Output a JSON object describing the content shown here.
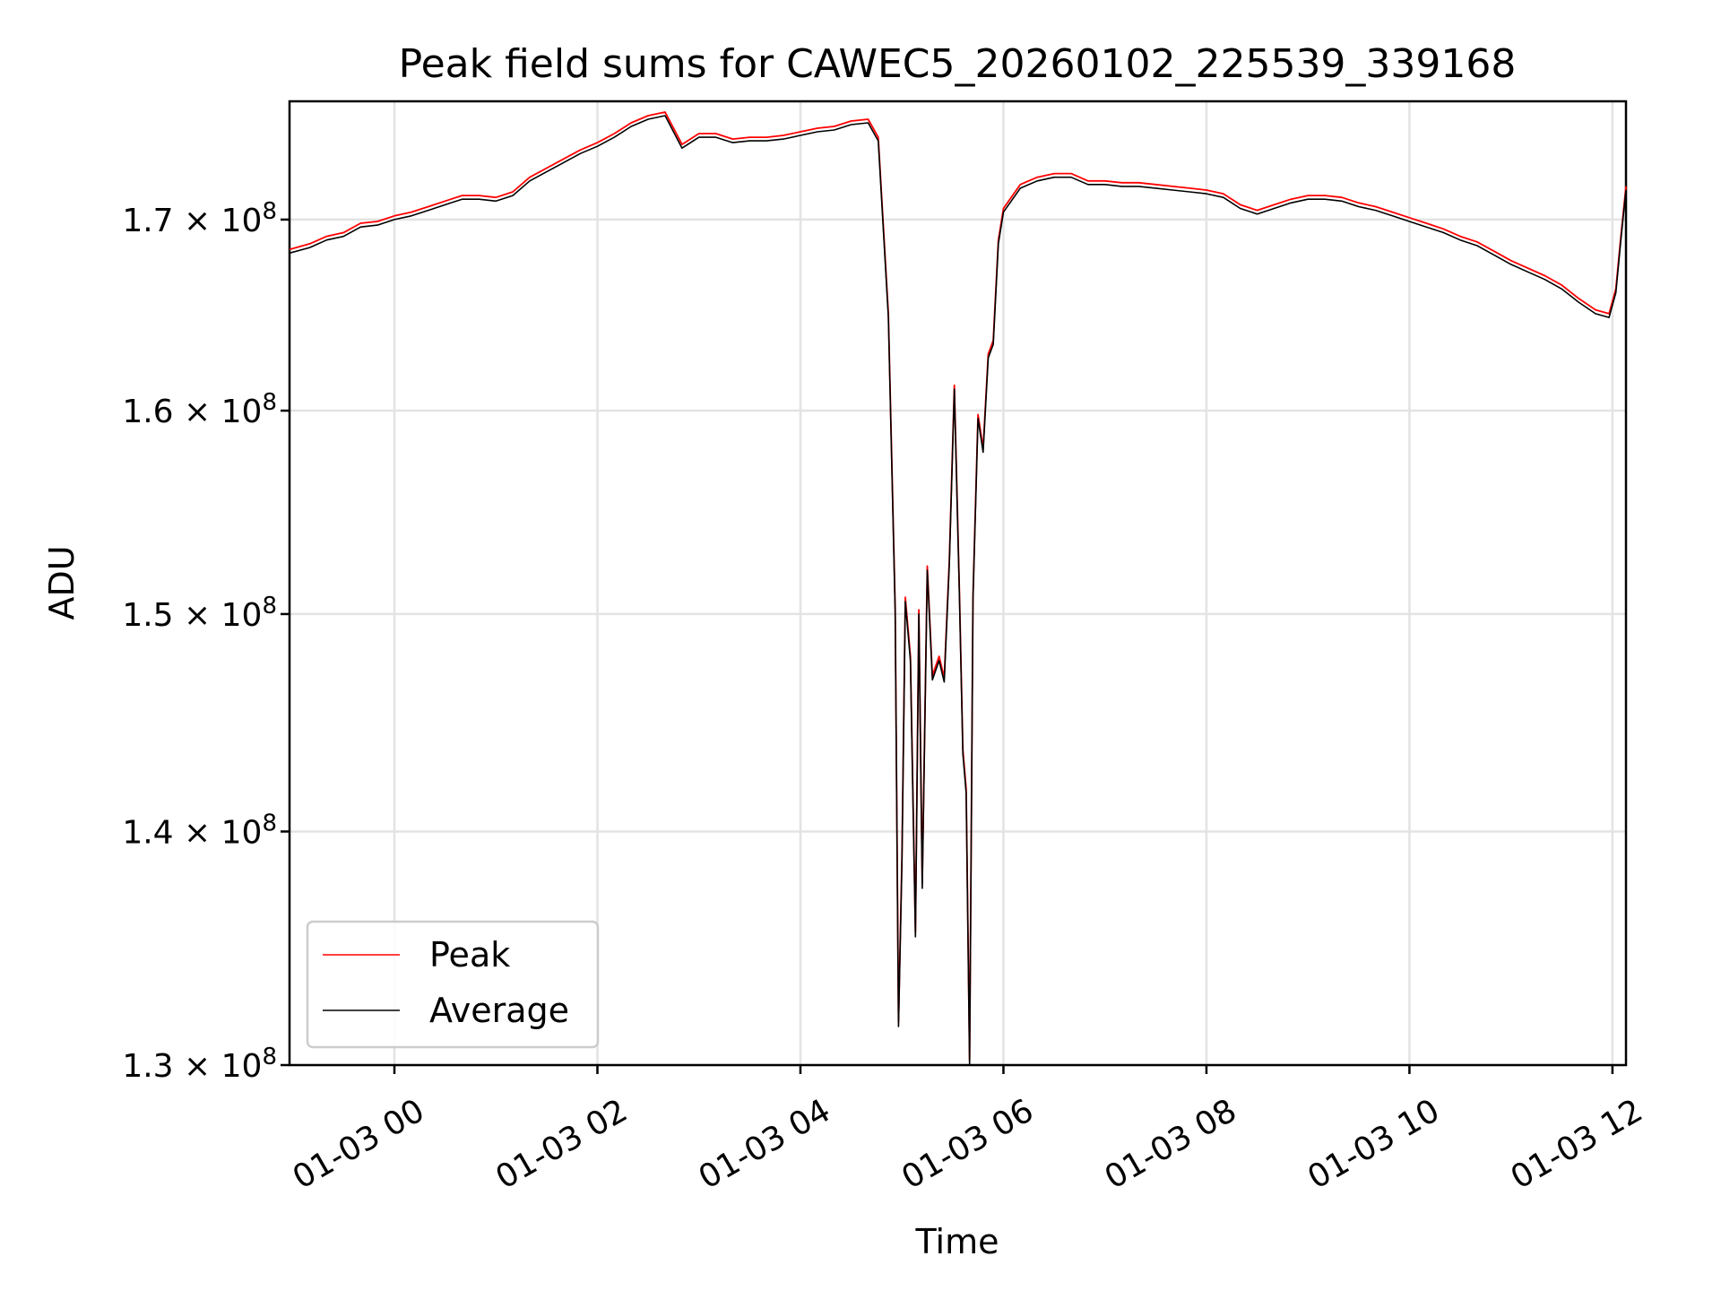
{
  "chart_data": {
    "type": "line",
    "title": "Peak field sums for CAWEC5_20260102_225539_339168",
    "xlabel": "Time",
    "ylabel": "ADU",
    "yscale": "log",
    "xlim": [
      "2026-01-02 22:58",
      "2026-01-03 12:08"
    ],
    "ylim": [
      130000000,
      176500000
    ],
    "x_ticks": [
      {
        "value": "2026-01-03 00:00",
        "label": "01-03 00"
      },
      {
        "value": "2026-01-03 02:00",
        "label": "01-03 02"
      },
      {
        "value": "2026-01-03 04:00",
        "label": "01-03 04"
      },
      {
        "value": "2026-01-03 06:00",
        "label": "01-03 06"
      },
      {
        "value": "2026-01-03 08:00",
        "label": "01-03 08"
      },
      {
        "value": "2026-01-03 10:00",
        "label": "01-03 10"
      },
      {
        "value": "2026-01-03 12:00",
        "label": "01-03 12"
      }
    ],
    "y_ticks": [
      {
        "value": 130000000,
        "mantissa": "1.3",
        "base": "10",
        "exp": "8"
      },
      {
        "value": 140000000,
        "mantissa": "1.4",
        "base": "10",
        "exp": "8"
      },
      {
        "value": 150000000,
        "mantissa": "1.5",
        "base": "10",
        "exp": "8"
      },
      {
        "value": 160000000,
        "mantissa": "1.6",
        "base": "10",
        "exp": "8"
      },
      {
        "value": 170000000,
        "mantissa": "1.7",
        "base": "10",
        "exp": "8"
      }
    ],
    "grid": true,
    "legend_position": "lower-left",
    "series": [
      {
        "name": "Peak",
        "color": "#ff0000",
        "points": [
          [
            "2026-01-02 22:58",
            168400000
          ],
          [
            "2026-01-02 23:10",
            168700000
          ],
          [
            "2026-01-02 23:20",
            169100000
          ],
          [
            "2026-01-02 23:30",
            169300000
          ],
          [
            "2026-01-02 23:40",
            169800000
          ],
          [
            "2026-01-02 23:50",
            169900000
          ],
          [
            "2026-01-03 00:00",
            170200000
          ],
          [
            "2026-01-03 00:10",
            170400000
          ],
          [
            "2026-01-03 00:20",
            170700000
          ],
          [
            "2026-01-03 00:30",
            171000000
          ],
          [
            "2026-01-03 00:40",
            171300000
          ],
          [
            "2026-01-03 00:50",
            171300000
          ],
          [
            "2026-01-03 01:00",
            171200000
          ],
          [
            "2026-01-03 01:10",
            171500000
          ],
          [
            "2026-01-03 01:20",
            172300000
          ],
          [
            "2026-01-03 01:30",
            172800000
          ],
          [
            "2026-01-03 01:40",
            173300000
          ],
          [
            "2026-01-03 01:50",
            173800000
          ],
          [
            "2026-01-03 02:00",
            174200000
          ],
          [
            "2026-01-03 02:10",
            174700000
          ],
          [
            "2026-01-03 02:20",
            175300000
          ],
          [
            "2026-01-03 02:30",
            175700000
          ],
          [
            "2026-01-03 02:40",
            175900000
          ],
          [
            "2026-01-03 02:50",
            174100000
          ],
          [
            "2026-01-03 03:00",
            174700000
          ],
          [
            "2026-01-03 03:10",
            174700000
          ],
          [
            "2026-01-03 03:20",
            174400000
          ],
          [
            "2026-01-03 03:30",
            174500000
          ],
          [
            "2026-01-03 03:40",
            174500000
          ],
          [
            "2026-01-03 03:50",
            174600000
          ],
          [
            "2026-01-03 04:00",
            174800000
          ],
          [
            "2026-01-03 04:10",
            175000000
          ],
          [
            "2026-01-03 04:20",
            175100000
          ],
          [
            "2026-01-03 04:30",
            175400000
          ],
          [
            "2026-01-03 04:40",
            175500000
          ],
          [
            "2026-01-03 04:46",
            174500000
          ],
          [
            "2026-01-03 04:52",
            165000000
          ],
          [
            "2026-01-03 04:56",
            150300000
          ],
          [
            "2026-01-03 04:58",
            131800000
          ],
          [
            "2026-01-03 05:00",
            138800000
          ],
          [
            "2026-01-03 05:02",
            150800000
          ],
          [
            "2026-01-03 05:05",
            148000000
          ],
          [
            "2026-01-03 05:08",
            135600000
          ],
          [
            "2026-01-03 05:10",
            150200000
          ],
          [
            "2026-01-03 05:12",
            137700000
          ],
          [
            "2026-01-03 05:15",
            152300000
          ],
          [
            "2026-01-03 05:18",
            147100000
          ],
          [
            "2026-01-03 05:22",
            148000000
          ],
          [
            "2026-01-03 05:25",
            147000000
          ],
          [
            "2026-01-03 05:28",
            152600000
          ],
          [
            "2026-01-03 05:31",
            161300000
          ],
          [
            "2026-01-03 05:34",
            151000000
          ],
          [
            "2026-01-03 05:36",
            143700000
          ],
          [
            "2026-01-03 05:38",
            141900000
          ],
          [
            "2026-01-03 05:40",
            130200000
          ],
          [
            "2026-01-03 05:42",
            150900000
          ],
          [
            "2026-01-03 05:45",
            159800000
          ],
          [
            "2026-01-03 05:48",
            158100000
          ],
          [
            "2026-01-03 05:51",
            162900000
          ],
          [
            "2026-01-03 05:54",
            163600000
          ],
          [
            "2026-01-03 05:57",
            168900000
          ],
          [
            "2026-01-03 06:00",
            170600000
          ],
          [
            "2026-01-03 06:10",
            171900000
          ],
          [
            "2026-01-03 06:20",
            172300000
          ],
          [
            "2026-01-03 06:30",
            172500000
          ],
          [
            "2026-01-03 06:40",
            172500000
          ],
          [
            "2026-01-03 06:50",
            172100000
          ],
          [
            "2026-01-03 07:00",
            172100000
          ],
          [
            "2026-01-03 07:10",
            172000000
          ],
          [
            "2026-01-03 07:20",
            172000000
          ],
          [
            "2026-01-03 07:30",
            171900000
          ],
          [
            "2026-01-03 07:40",
            171800000
          ],
          [
            "2026-01-03 07:50",
            171700000
          ],
          [
            "2026-01-03 08:00",
            171600000
          ],
          [
            "2026-01-03 08:10",
            171400000
          ],
          [
            "2026-01-03 08:20",
            170800000
          ],
          [
            "2026-01-03 08:30",
            170500000
          ],
          [
            "2026-01-03 08:40",
            170800000
          ],
          [
            "2026-01-03 08:50",
            171100000
          ],
          [
            "2026-01-03 09:00",
            171300000
          ],
          [
            "2026-01-03 09:10",
            171300000
          ],
          [
            "2026-01-03 09:20",
            171200000
          ],
          [
            "2026-01-03 09:30",
            170900000
          ],
          [
            "2026-01-03 09:40",
            170700000
          ],
          [
            "2026-01-03 09:50",
            170400000
          ],
          [
            "2026-01-03 10:00",
            170100000
          ],
          [
            "2026-01-03 10:10",
            169800000
          ],
          [
            "2026-01-03 10:20",
            169500000
          ],
          [
            "2026-01-03 10:30",
            169100000
          ],
          [
            "2026-01-03 10:40",
            168800000
          ],
          [
            "2026-01-03 10:50",
            168300000
          ],
          [
            "2026-01-03 11:00",
            167800000
          ],
          [
            "2026-01-03 11:10",
            167400000
          ],
          [
            "2026-01-03 11:20",
            167000000
          ],
          [
            "2026-01-03 11:30",
            166500000
          ],
          [
            "2026-01-03 11:40",
            165800000
          ],
          [
            "2026-01-03 11:50",
            165200000
          ],
          [
            "2026-01-03 11:58",
            165000000
          ],
          [
            "2026-01-03 12:02",
            166300000
          ],
          [
            "2026-01-03 12:05",
            169100000
          ],
          [
            "2026-01-03 12:08",
            171800000
          ]
        ]
      },
      {
        "name": "Average",
        "color": "#000000",
        "points": [
          [
            "2026-01-02 22:58",
            168200000
          ],
          [
            "2026-01-02 23:10",
            168500000
          ],
          [
            "2026-01-02 23:20",
            168900000
          ],
          [
            "2026-01-02 23:30",
            169100000
          ],
          [
            "2026-01-02 23:40",
            169600000
          ],
          [
            "2026-01-02 23:50",
            169700000
          ],
          [
            "2026-01-03 00:00",
            170000000
          ],
          [
            "2026-01-03 00:10",
            170200000
          ],
          [
            "2026-01-03 00:20",
            170500000
          ],
          [
            "2026-01-03 00:30",
            170800000
          ],
          [
            "2026-01-03 00:40",
            171100000
          ],
          [
            "2026-01-03 00:50",
            171100000
          ],
          [
            "2026-01-03 01:00",
            171000000
          ],
          [
            "2026-01-03 01:10",
            171300000
          ],
          [
            "2026-01-03 01:20",
            172100000
          ],
          [
            "2026-01-03 01:30",
            172600000
          ],
          [
            "2026-01-03 01:40",
            173100000
          ],
          [
            "2026-01-03 01:50",
            173600000
          ],
          [
            "2026-01-03 02:00",
            174000000
          ],
          [
            "2026-01-03 02:10",
            174500000
          ],
          [
            "2026-01-03 02:20",
            175100000
          ],
          [
            "2026-01-03 02:30",
            175500000
          ],
          [
            "2026-01-03 02:40",
            175700000
          ],
          [
            "2026-01-03 02:50",
            173900000
          ],
          [
            "2026-01-03 03:00",
            174500000
          ],
          [
            "2026-01-03 03:10",
            174500000
          ],
          [
            "2026-01-03 03:20",
            174200000
          ],
          [
            "2026-01-03 03:30",
            174300000
          ],
          [
            "2026-01-03 03:40",
            174300000
          ],
          [
            "2026-01-03 03:50",
            174400000
          ],
          [
            "2026-01-03 04:00",
            174600000
          ],
          [
            "2026-01-03 04:10",
            174800000
          ],
          [
            "2026-01-03 04:20",
            174900000
          ],
          [
            "2026-01-03 04:30",
            175200000
          ],
          [
            "2026-01-03 04:40",
            175300000
          ],
          [
            "2026-01-03 04:46",
            174300000
          ],
          [
            "2026-01-03 04:52",
            164800000
          ],
          [
            "2026-01-03 04:56",
            150100000
          ],
          [
            "2026-01-03 04:58",
            131600000
          ],
          [
            "2026-01-03 05:00",
            138600000
          ],
          [
            "2026-01-03 05:02",
            150600000
          ],
          [
            "2026-01-03 05:05",
            147800000
          ],
          [
            "2026-01-03 05:08",
            135400000
          ],
          [
            "2026-01-03 05:10",
            150000000
          ],
          [
            "2026-01-03 05:12",
            137500000
          ],
          [
            "2026-01-03 05:15",
            152100000
          ],
          [
            "2026-01-03 05:18",
            146900000
          ],
          [
            "2026-01-03 05:22",
            147800000
          ],
          [
            "2026-01-03 05:25",
            146800000
          ],
          [
            "2026-01-03 05:28",
            152400000
          ],
          [
            "2026-01-03 05:31",
            161100000
          ],
          [
            "2026-01-03 05:34",
            150800000
          ],
          [
            "2026-01-03 05:36",
            143500000
          ],
          [
            "2026-01-03 05:38",
            141700000
          ],
          [
            "2026-01-03 05:40",
            130000000
          ],
          [
            "2026-01-03 05:42",
            150700000
          ],
          [
            "2026-01-03 05:45",
            159600000
          ],
          [
            "2026-01-03 05:48",
            157900000
          ],
          [
            "2026-01-03 05:51",
            162700000
          ],
          [
            "2026-01-03 05:54",
            163400000
          ],
          [
            "2026-01-03 05:57",
            168700000
          ],
          [
            "2026-01-03 06:00",
            170400000
          ],
          [
            "2026-01-03 06:10",
            171700000
          ],
          [
            "2026-01-03 06:20",
            172100000
          ],
          [
            "2026-01-03 06:30",
            172300000
          ],
          [
            "2026-01-03 06:40",
            172300000
          ],
          [
            "2026-01-03 06:50",
            171900000
          ],
          [
            "2026-01-03 07:00",
            171900000
          ],
          [
            "2026-01-03 07:10",
            171800000
          ],
          [
            "2026-01-03 07:20",
            171800000
          ],
          [
            "2026-01-03 07:30",
            171700000
          ],
          [
            "2026-01-03 07:40",
            171600000
          ],
          [
            "2026-01-03 07:50",
            171500000
          ],
          [
            "2026-01-03 08:00",
            171400000
          ],
          [
            "2026-01-03 08:10",
            171200000
          ],
          [
            "2026-01-03 08:20",
            170600000
          ],
          [
            "2026-01-03 08:30",
            170300000
          ],
          [
            "2026-01-03 08:40",
            170600000
          ],
          [
            "2026-01-03 08:50",
            170900000
          ],
          [
            "2026-01-03 09:00",
            171100000
          ],
          [
            "2026-01-03 09:10",
            171100000
          ],
          [
            "2026-01-03 09:20",
            171000000
          ],
          [
            "2026-01-03 09:30",
            170700000
          ],
          [
            "2026-01-03 09:40",
            170500000
          ],
          [
            "2026-01-03 09:50",
            170200000
          ],
          [
            "2026-01-03 10:00",
            169900000
          ],
          [
            "2026-01-03 10:10",
            169600000
          ],
          [
            "2026-01-03 10:20",
            169300000
          ],
          [
            "2026-01-03 10:30",
            168900000
          ],
          [
            "2026-01-03 10:40",
            168600000
          ],
          [
            "2026-01-03 10:50",
            168100000
          ],
          [
            "2026-01-03 11:00",
            167600000
          ],
          [
            "2026-01-03 11:10",
            167200000
          ],
          [
            "2026-01-03 11:20",
            166800000
          ],
          [
            "2026-01-03 11:30",
            166300000
          ],
          [
            "2026-01-03 11:40",
            165600000
          ],
          [
            "2026-01-03 11:50",
            165000000
          ],
          [
            "2026-01-03 11:58",
            164800000
          ],
          [
            "2026-01-03 12:02",
            166100000
          ],
          [
            "2026-01-03 12:05",
            168900000
          ],
          [
            "2026-01-03 12:08",
            171600000
          ]
        ]
      }
    ]
  }
}
